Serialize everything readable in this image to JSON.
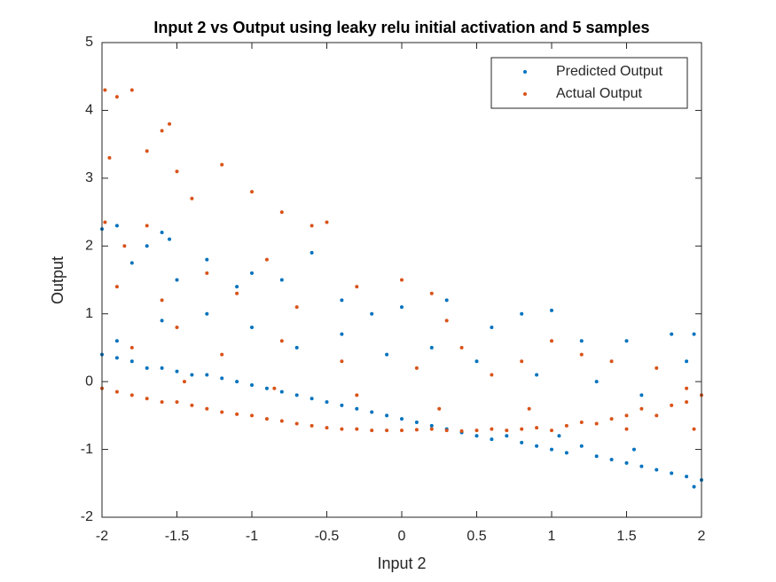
{
  "chart_data": {
    "type": "scatter",
    "title": "Input 2 vs Output using leaky relu initial activation and 5 samples",
    "xlabel": "Input 2",
    "ylabel": "Output",
    "xlim": [
      -2,
      2
    ],
    "ylim": [
      -2,
      5
    ],
    "xticks": [
      -2,
      -1.5,
      -1,
      -0.5,
      0,
      0.5,
      1,
      1.5,
      2
    ],
    "yticks": [
      -2,
      -1,
      0,
      1,
      2,
      3,
      4,
      5
    ],
    "legend": "top-right",
    "series": [
      {
        "name": "Predicted Output",
        "color": "#0072BD",
        "x": [
          -2.0,
          -1.9,
          -1.7,
          -1.6,
          -1.55,
          -1.8,
          -1.5,
          -1.3,
          -1.1,
          -1.0,
          -0.8,
          -0.6,
          -0.4,
          -0.2,
          0.0,
          0.3,
          0.6,
          0.8,
          1.0,
          1.2,
          1.5,
          1.8,
          1.95,
          -1.9,
          -1.6,
          -1.3,
          -1.0,
          -0.7,
          -0.4,
          -0.1,
          0.2,
          0.5,
          0.9,
          1.3,
          1.6,
          1.9,
          -2.0,
          -1.9,
          -1.8,
          -1.7,
          -1.6,
          -1.5,
          -1.4,
          -1.3,
          -1.2,
          -1.1,
          -1.0,
          -0.9,
          -0.8,
          -0.7,
          -0.6,
          -0.5,
          -0.4,
          -0.3,
          -0.2,
          -0.1,
          0.0,
          0.1,
          0.2,
          0.3,
          0.4,
          0.5,
          0.6,
          0.7,
          0.8,
          0.9,
          1.0,
          1.1,
          1.2,
          1.3,
          1.4,
          1.5,
          1.6,
          1.7,
          1.8,
          1.9,
          2.0,
          1.95,
          1.55,
          1.05
        ],
        "values": [
          2.25,
          2.3,
          2.0,
          2.2,
          2.1,
          1.75,
          1.5,
          1.8,
          1.4,
          1.6,
          1.5,
          1.9,
          1.2,
          1.0,
          1.1,
          1.2,
          0.8,
          1.0,
          1.05,
          0.6,
          0.6,
          0.7,
          0.7,
          0.6,
          0.9,
          1.0,
          0.8,
          0.5,
          0.7,
          0.4,
          0.5,
          0.3,
          0.1,
          0.0,
          -0.2,
          0.3,
          0.4,
          0.35,
          0.3,
          0.2,
          0.2,
          0.15,
          0.1,
          0.1,
          0.05,
          0.0,
          -0.05,
          -0.1,
          -0.15,
          -0.2,
          -0.25,
          -0.3,
          -0.35,
          -0.4,
          -0.45,
          -0.5,
          -0.55,
          -0.6,
          -0.65,
          -0.7,
          -0.75,
          -0.8,
          -0.85,
          -0.8,
          -0.9,
          -0.95,
          -1.0,
          -1.05,
          -0.95,
          -1.1,
          -1.15,
          -1.2,
          -1.25,
          -1.3,
          -1.35,
          -1.4,
          -1.45,
          -1.55,
          -1.0,
          -0.8
        ]
      },
      {
        "name": "Actual Output",
        "color": "#D95319",
        "x": [
          -1.98,
          -1.9,
          -1.8,
          -1.95,
          -1.7,
          -1.6,
          -1.55,
          -1.5,
          -1.4,
          -1.2,
          -1.0,
          -0.8,
          -0.6,
          -0.5,
          -1.98,
          -1.85,
          -1.7,
          -1.9,
          -1.6,
          -1.3,
          -1.1,
          -0.9,
          -0.7,
          -0.3,
          0.0,
          0.2,
          0.3,
          -1.8,
          -1.5,
          -1.2,
          -0.8,
          -0.4,
          0.1,
          0.4,
          0.6,
          0.8,
          1.0,
          1.2,
          1.4,
          1.7,
          1.9,
          -2.0,
          -1.9,
          -1.8,
          -1.7,
          -1.6,
          -1.5,
          -1.4,
          -1.3,
          -1.2,
          -1.1,
          -1.0,
          -0.9,
          -0.8,
          -0.7,
          -0.6,
          -0.5,
          -0.4,
          -0.3,
          -0.2,
          -0.1,
          0.0,
          0.1,
          0.2,
          0.3,
          0.4,
          0.5,
          0.6,
          0.7,
          0.8,
          0.9,
          1.0,
          1.1,
          1.2,
          1.3,
          1.4,
          1.5,
          1.6,
          1.7,
          1.8,
          1.9,
          2.0,
          1.95,
          1.5,
          0.85,
          0.25,
          -0.3,
          -0.85,
          -1.45
        ],
        "values": [
          4.3,
          4.2,
          4.3,
          3.3,
          3.4,
          3.7,
          3.8,
          3.1,
          2.7,
          3.2,
          2.8,
          2.5,
          2.3,
          2.35,
          2.35,
          2.0,
          2.3,
          1.4,
          1.2,
          1.6,
          1.3,
          1.8,
          1.1,
          1.4,
          1.5,
          1.3,
          0.9,
          0.5,
          0.8,
          0.4,
          0.6,
          0.3,
          0.2,
          0.5,
          0.1,
          0.3,
          0.6,
          0.4,
          0.3,
          0.2,
          -0.1,
          -0.1,
          -0.15,
          -0.2,
          -0.25,
          -0.3,
          -0.3,
          -0.35,
          -0.4,
          -0.45,
          -0.48,
          -0.5,
          -0.55,
          -0.58,
          -0.62,
          -0.65,
          -0.68,
          -0.7,
          -0.7,
          -0.72,
          -0.72,
          -0.72,
          -0.71,
          -0.7,
          -0.72,
          -0.73,
          -0.72,
          -0.7,
          -0.72,
          -0.7,
          -0.68,
          -0.72,
          -0.65,
          -0.6,
          -0.62,
          -0.55,
          -0.5,
          -0.4,
          -0.5,
          -0.35,
          -0.3,
          -0.2,
          -0.7,
          -0.7,
          -0.4,
          -0.4,
          -0.2,
          -0.1,
          0.0
        ]
      }
    ]
  }
}
